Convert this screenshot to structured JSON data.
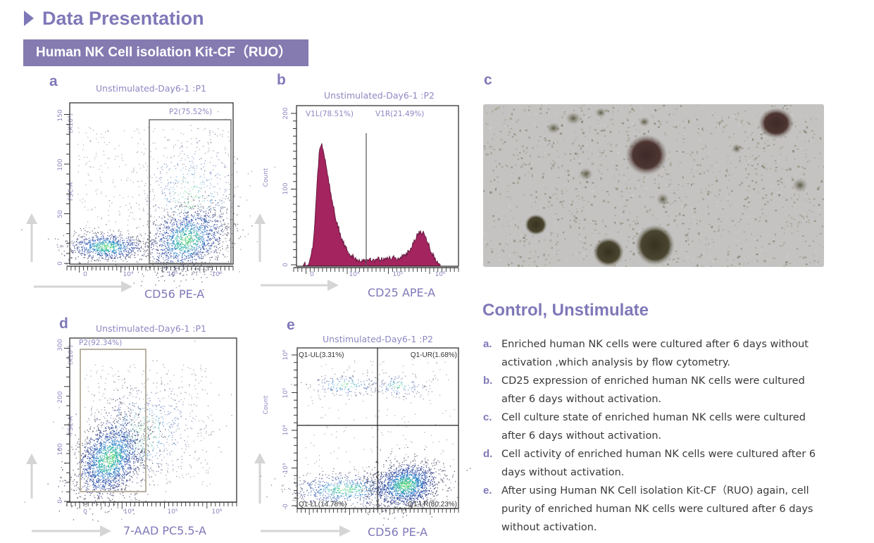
{
  "header": {
    "title": "Data Presentation",
    "kit_banner": "Human NK Cell isolation Kit-CF（RUO）"
  },
  "panels": {
    "a": {
      "letter": "a",
      "title": "Unstimulated-Day6-1 :P1",
      "gate_label": "P2(75.52%)",
      "y_label": "FSC-A",
      "y_scale": "(X10⁴)",
      "x_label": "CD56   PE-A",
      "y_ticks": [
        "0",
        "50",
        "100",
        "150"
      ],
      "x_ticks": [
        "0",
        "10⁴",
        "10⁵",
        "10⁶"
      ]
    },
    "b": {
      "letter": "b",
      "title": "Unstimulated-Day6-1 :P2",
      "gate_left": "V1L(78.51%)",
      "gate_right": "V1R(21.49%)",
      "y_label": "Count",
      "x_label": "CD25   APE-A",
      "y_ticks": [
        "0",
        "100",
        "200"
      ],
      "x_ticks": [
        "0",
        "10⁴",
        "10⁵",
        "10⁶"
      ]
    },
    "c": {
      "letter": "c"
    },
    "d": {
      "letter": "d",
      "title": "Unstimulated-Day6-1 :P1",
      "gate_label": "P2(92.34%)",
      "y_label": "FSC-A",
      "y_scale": "(X10⁴)",
      "x_label": "7-AAD   PC5.5-A",
      "y_ticks": [
        "0",
        "100",
        "200",
        "300"
      ],
      "x_ticks": [
        "0",
        "10⁴",
        "10⁵",
        "10⁶"
      ]
    },
    "e": {
      "letter": "e",
      "title": "Unstimulated-Day6-1 :P2",
      "q_ul": "Q1-UL(3.31%)",
      "q_ur": "Q1-UR(1.68%)",
      "q_ll": "Q1-LL(14.78%)",
      "q_lr": "Q1-LR(80.23%)",
      "y_label": "Count",
      "x_label": "CD56   PE-A",
      "y_ticks": [
        "0",
        "10³",
        "10⁴",
        "10⁵",
        "10⁶"
      ]
    }
  },
  "description": {
    "title": "Control, Unstimulate",
    "items": [
      {
        "mark": "a.",
        "text": "Enriched human NK cells were cultured after 6 days without activation ,which analysis by flow cytometry."
      },
      {
        "mark": "b.",
        "text": "CD25 expression of enriched human NK cells were cultured after 6 days without activation."
      },
      {
        "mark": "c.",
        "text": "Cell culture state of enriched human NK cells were cultured after 6 days without activation."
      },
      {
        "mark": "d.",
        "text": "Cell activity of enriched human NK cells were cultured after 6 days without activation."
      },
      {
        "mark": "e.",
        "text": "After using Human NK Cell isolation Kit-CF（RUO) again, cell purity of enriched human NK cells were cultured after 6 days without activation."
      }
    ]
  },
  "colors": {
    "accent": "#7f78b8",
    "banner": "#857bb1",
    "histogram": "#a3245f"
  }
}
